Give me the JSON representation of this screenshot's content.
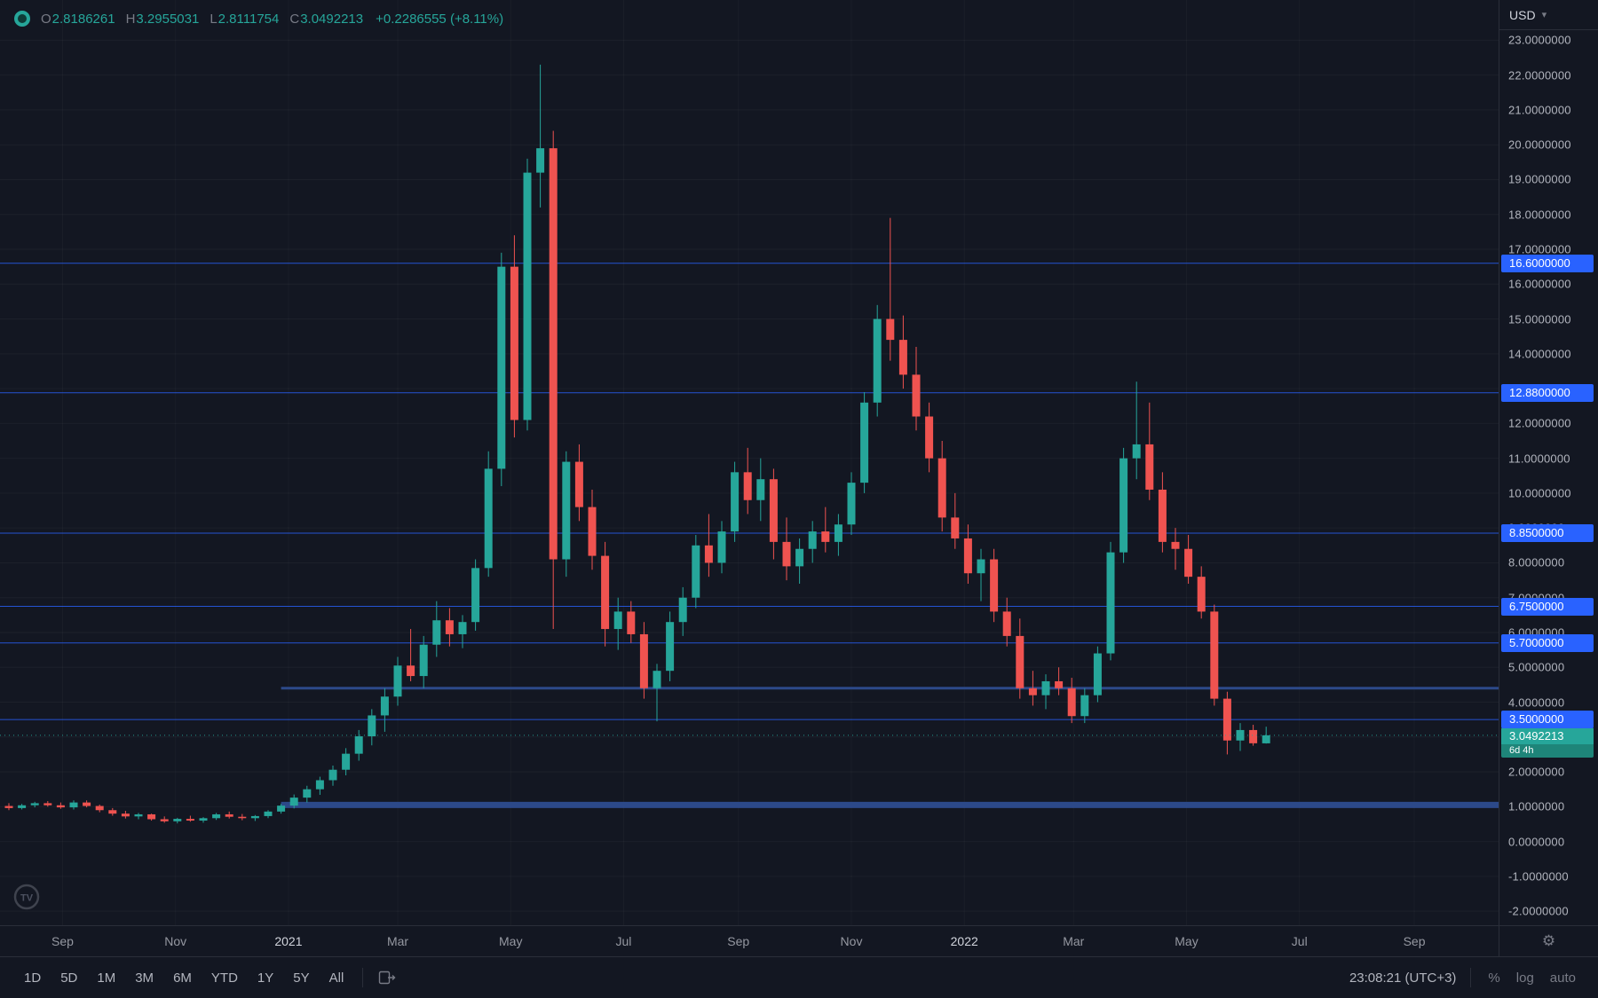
{
  "legend": {
    "open_label": "O",
    "open_value": "2.8186261",
    "high_label": "H",
    "high_value": "3.2955031",
    "low_label": "L",
    "low_value": "2.8111754",
    "close_label": "C",
    "close_value": "3.0492213",
    "change_value": "+0.2286555 (+8.11%)"
  },
  "price_axis": {
    "currency_label": "USD",
    "tick_labels": [
      "23.0000000",
      "22.0000000",
      "21.0000000",
      "20.0000000",
      "19.0000000",
      "18.0000000",
      "17.0000000",
      "16.0000000",
      "15.0000000",
      "14.0000000",
      "13.0000000",
      "12.0000000",
      "11.0000000",
      "10.0000000",
      "9.0000000",
      "8.0000000",
      "7.0000000",
      "6.0000000",
      "5.0000000",
      "4.0000000",
      "3.0000000",
      "2.0000000",
      "1.0000000",
      "0.0000000",
      "-1.0000000",
      "-2.0000000"
    ],
    "alert_badges": [
      {
        "label": "16.6000000",
        "value": 16.6
      },
      {
        "label": "12.8800000",
        "value": 12.88
      },
      {
        "label": "8.8500000",
        "value": 8.85
      },
      {
        "label": "6.7500000",
        "value": 6.75
      },
      {
        "label": "5.7000000",
        "value": 5.7
      },
      {
        "label": "3.5000000",
        "value": 3.5
      }
    ],
    "last_price_badge": {
      "label": "3.0492213",
      "countdown": "6d 4h",
      "value": 3.0492213
    }
  },
  "time_axis": {
    "labels": [
      {
        "text": "Sep",
        "date": "2020-09-01"
      },
      {
        "text": "Nov",
        "date": "2020-11-01"
      },
      {
        "text": "2021",
        "date": "2021-01-01",
        "year": true
      },
      {
        "text": "Mar",
        "date": "2021-03-01"
      },
      {
        "text": "May",
        "date": "2021-05-01"
      },
      {
        "text": "Jul",
        "date": "2021-07-01"
      },
      {
        "text": "Sep",
        "date": "2021-09-01"
      },
      {
        "text": "Nov",
        "date": "2021-11-01"
      },
      {
        "text": "2022",
        "date": "2022-01-01",
        "year": true
      },
      {
        "text": "Mar",
        "date": "2022-03-01"
      },
      {
        "text": "May",
        "date": "2022-05-01"
      },
      {
        "text": "Jul",
        "date": "2022-07-01"
      },
      {
        "text": "Sep",
        "date": "2022-09-01"
      }
    ]
  },
  "toolbar": {
    "ranges": [
      "1D",
      "5D",
      "1M",
      "3M",
      "6M",
      "YTD",
      "1Y",
      "5Y",
      "All"
    ],
    "clock": "23:08:21 (UTC+3)",
    "percent_label": "%",
    "log_label": "log",
    "auto_label": "auto"
  },
  "colors": {
    "background": "#131722",
    "up": "#26A69A",
    "down": "#EF5350",
    "alert_line": "#2962FF",
    "ray": "#2E4C8F",
    "axis_text": "#B2B5BE",
    "dim_text": "#787B86",
    "badge_bg": "#2962FF",
    "last_badge_bg": "#26A69A",
    "panel_border": "#2A2E39"
  },
  "chart_data": {
    "type": "candlestick",
    "title": "",
    "ylabel": "USD",
    "ylim": [
      -2,
      23
    ],
    "y_tick_step": 1,
    "x_visible_range": [
      "2020-08-03",
      "2022-09-01"
    ],
    "grid": "off",
    "columns": [
      "date",
      "open",
      "high",
      "low",
      "close"
    ],
    "candles": [
      [
        "2020-08-03",
        1.02,
        1.1,
        0.9,
        0.96
      ],
      [
        "2020-08-10",
        0.96,
        1.08,
        0.92,
        1.04
      ],
      [
        "2020-08-17",
        1.04,
        1.14,
        0.98,
        1.1
      ],
      [
        "2020-08-24",
        1.1,
        1.16,
        1.0,
        1.04
      ],
      [
        "2020-08-31",
        1.04,
        1.12,
        0.94,
        0.98
      ],
      [
        "2020-09-07",
        0.98,
        1.18,
        0.92,
        1.12
      ],
      [
        "2020-09-14",
        1.12,
        1.18,
        0.98,
        1.02
      ],
      [
        "2020-09-21",
        1.02,
        1.06,
        0.84,
        0.9
      ],
      [
        "2020-09-28",
        0.9,
        0.96,
        0.74,
        0.8
      ],
      [
        "2020-10-05",
        0.8,
        0.88,
        0.66,
        0.72
      ],
      [
        "2020-10-12",
        0.72,
        0.82,
        0.64,
        0.78
      ],
      [
        "2020-10-19",
        0.78,
        0.8,
        0.6,
        0.64
      ],
      [
        "2020-10-26",
        0.64,
        0.72,
        0.54,
        0.58
      ],
      [
        "2020-11-02",
        0.58,
        0.68,
        0.52,
        0.65
      ],
      [
        "2020-11-09",
        0.65,
        0.74,
        0.57,
        0.6
      ],
      [
        "2020-11-16",
        0.6,
        0.7,
        0.54,
        0.67
      ],
      [
        "2020-11-23",
        0.67,
        0.82,
        0.62,
        0.78
      ],
      [
        "2020-11-30",
        0.78,
        0.86,
        0.66,
        0.71
      ],
      [
        "2020-12-07",
        0.71,
        0.79,
        0.61,
        0.67
      ],
      [
        "2020-12-14",
        0.67,
        0.76,
        0.59,
        0.73
      ],
      [
        "2020-12-21",
        0.73,
        0.9,
        0.67,
        0.86
      ],
      [
        "2020-12-28",
        0.86,
        1.08,
        0.8,
        1.03
      ],
      [
        "2021-01-04",
        1.03,
        1.35,
        0.95,
        1.26
      ],
      [
        "2021-01-11",
        1.26,
        1.6,
        1.12,
        1.5
      ],
      [
        "2021-01-18",
        1.5,
        1.86,
        1.34,
        1.76
      ],
      [
        "2021-01-25",
        1.76,
        2.18,
        1.6,
        2.06
      ],
      [
        "2021-02-01",
        2.06,
        2.68,
        1.9,
        2.52
      ],
      [
        "2021-02-08",
        2.52,
        3.2,
        2.32,
        3.02
      ],
      [
        "2021-02-15",
        3.02,
        3.8,
        2.76,
        3.62
      ],
      [
        "2021-02-22",
        3.62,
        4.4,
        3.15,
        4.16
      ],
      [
        "2021-03-01",
        4.16,
        5.3,
        3.9,
        5.05
      ],
      [
        "2021-03-08",
        5.05,
        6.1,
        4.6,
        4.75
      ],
      [
        "2021-03-15",
        4.75,
        5.9,
        4.4,
        5.65
      ],
      [
        "2021-03-22",
        5.65,
        6.9,
        5.3,
        6.35
      ],
      [
        "2021-03-29",
        6.35,
        6.7,
        5.6,
        5.95
      ],
      [
        "2021-04-05",
        5.95,
        6.5,
        5.55,
        6.3
      ],
      [
        "2021-04-12",
        6.3,
        8.1,
        6.05,
        7.85
      ],
      [
        "2021-04-19",
        7.85,
        11.2,
        7.6,
        10.7
      ],
      [
        "2021-04-26",
        10.7,
        16.9,
        10.2,
        16.5
      ],
      [
        "2021-05-03",
        16.5,
        17.4,
        11.6,
        12.1
      ],
      [
        "2021-05-10",
        12.1,
        19.6,
        11.8,
        19.2
      ],
      [
        "2021-05-17",
        19.2,
        22.3,
        18.2,
        19.9
      ],
      [
        "2021-05-24",
        19.9,
        20.4,
        6.1,
        8.1
      ],
      [
        "2021-05-31",
        8.1,
        11.2,
        7.6,
        10.9
      ],
      [
        "2021-06-07",
        10.9,
        11.4,
        9.2,
        9.6
      ],
      [
        "2021-06-14",
        9.6,
        10.1,
        7.8,
        8.2
      ],
      [
        "2021-06-21",
        8.2,
        8.6,
        5.6,
        6.1
      ],
      [
        "2021-06-28",
        6.1,
        7.0,
        5.5,
        6.6
      ],
      [
        "2021-07-05",
        6.6,
        6.9,
        5.7,
        5.95
      ],
      [
        "2021-07-12",
        5.95,
        6.3,
        4.1,
        4.4
      ],
      [
        "2021-07-19",
        4.4,
        5.1,
        3.45,
        4.9
      ],
      [
        "2021-07-26",
        4.9,
        6.6,
        4.6,
        6.3
      ],
      [
        "2021-08-02",
        6.3,
        7.3,
        5.9,
        7.0
      ],
      [
        "2021-08-09",
        7.0,
        8.8,
        6.7,
        8.5
      ],
      [
        "2021-08-16",
        8.5,
        9.4,
        7.6,
        8.0
      ],
      [
        "2021-08-23",
        8.0,
        9.2,
        7.7,
        8.9
      ],
      [
        "2021-08-30",
        8.9,
        10.9,
        8.6,
        10.6
      ],
      [
        "2021-09-06",
        10.6,
        11.3,
        9.4,
        9.8
      ],
      [
        "2021-09-13",
        9.8,
        11.0,
        9.2,
        10.4
      ],
      [
        "2021-09-20",
        10.4,
        10.7,
        8.1,
        8.6
      ],
      [
        "2021-09-27",
        8.6,
        9.3,
        7.5,
        7.9
      ],
      [
        "2021-10-04",
        7.9,
        8.7,
        7.4,
        8.4
      ],
      [
        "2021-10-11",
        8.4,
        9.2,
        8.0,
        8.9
      ],
      [
        "2021-10-18",
        8.9,
        9.6,
        8.3,
        8.6
      ],
      [
        "2021-10-25",
        8.6,
        9.4,
        8.2,
        9.1
      ],
      [
        "2021-11-01",
        9.1,
        10.6,
        8.8,
        10.3
      ],
      [
        "2021-11-08",
        10.3,
        12.9,
        10.0,
        12.6
      ],
      [
        "2021-11-15",
        12.6,
        15.4,
        12.2,
        15.0
      ],
      [
        "2021-11-22",
        15.0,
        17.9,
        13.8,
        14.4
      ],
      [
        "2021-11-29",
        14.4,
        15.1,
        13.0,
        13.4
      ],
      [
        "2021-12-06",
        13.4,
        14.2,
        11.8,
        12.2
      ],
      [
        "2021-12-13",
        12.2,
        12.6,
        10.6,
        11.0
      ],
      [
        "2021-12-20",
        11.0,
        11.5,
        8.9,
        9.3
      ],
      [
        "2021-12-27",
        9.3,
        10.0,
        8.4,
        8.7
      ],
      [
        "2022-01-03",
        8.7,
        9.1,
        7.4,
        7.7
      ],
      [
        "2022-01-10",
        7.7,
        8.4,
        6.9,
        8.1
      ],
      [
        "2022-01-17",
        8.1,
        8.4,
        6.3,
        6.6
      ],
      [
        "2022-01-24",
        6.6,
        7.0,
        5.6,
        5.9
      ],
      [
        "2022-01-31",
        5.9,
        6.4,
        4.1,
        4.4
      ],
      [
        "2022-02-07",
        4.4,
        4.9,
        3.9,
        4.2
      ],
      [
        "2022-02-14",
        4.2,
        4.8,
        3.8,
        4.6
      ],
      [
        "2022-02-21",
        4.6,
        5.0,
        4.2,
        4.4
      ],
      [
        "2022-02-28",
        4.4,
        4.7,
        3.4,
        3.6
      ],
      [
        "2022-03-07",
        3.6,
        4.4,
        3.4,
        4.2
      ],
      [
        "2022-03-14",
        4.2,
        5.6,
        4.0,
        5.4
      ],
      [
        "2022-03-21",
        5.4,
        8.6,
        5.2,
        8.3
      ],
      [
        "2022-03-28",
        8.3,
        11.3,
        8.0,
        11.0
      ],
      [
        "2022-04-04",
        11.0,
        13.2,
        10.4,
        11.4
      ],
      [
        "2022-04-11",
        11.4,
        12.6,
        9.8,
        10.1
      ],
      [
        "2022-04-18",
        10.1,
        10.6,
        8.3,
        8.6
      ],
      [
        "2022-04-25",
        8.6,
        9.0,
        7.8,
        8.4
      ],
      [
        "2022-05-02",
        8.4,
        8.8,
        7.4,
        7.6
      ],
      [
        "2022-05-09",
        7.6,
        7.9,
        6.4,
        6.6
      ],
      [
        "2022-05-16",
        6.6,
        6.8,
        3.9,
        4.1
      ],
      [
        "2022-05-23",
        4.1,
        4.3,
        2.5,
        2.9
      ],
      [
        "2022-05-30",
        2.9,
        3.4,
        2.6,
        3.2
      ],
      [
        "2022-06-06",
        3.2,
        3.35,
        2.75,
        2.82
      ],
      [
        "2022-06-13",
        2.8186261,
        3.2955031,
        2.8111754,
        3.0492213
      ]
    ],
    "alert_lines": [
      16.6,
      12.88,
      8.85,
      6.75,
      5.7,
      3.5
    ],
    "rays": [
      {
        "value": 4.4,
        "start_date": "2020-12-28",
        "thickness": 3
      },
      {
        "value": 1.05,
        "start_date": "2020-12-28",
        "thickness": 7
      }
    ],
    "last_price": 3.0492213
  }
}
